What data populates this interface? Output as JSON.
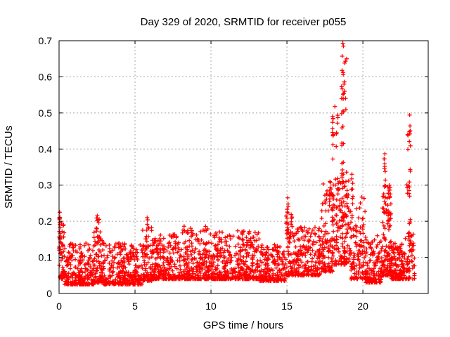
{
  "chart_data": {
    "type": "scatter",
    "title": "Day 329 of 2020, SRMTID for receiver p055",
    "xlabel": "GPS time / hours",
    "ylabel": "SRMTID / TECUs",
    "xlim": [
      0,
      24.3
    ],
    "ylim": [
      0,
      0.7
    ],
    "xticks": [
      0,
      5,
      10,
      15,
      20
    ],
    "xtick_labels": [
      "0",
      "5",
      "10",
      "15",
      "20"
    ],
    "yticks": [
      0,
      0.1,
      0.2,
      0.3,
      0.4,
      0.5,
      0.6,
      0.7
    ],
    "ytick_labels": [
      "0",
      "0.1",
      "0.2",
      "0.3",
      "0.4",
      "0.5",
      "0.6",
      "0.7"
    ],
    "grid": true,
    "grid_style": "dotted",
    "legend": "none",
    "marker": "plus",
    "marker_color": "#ff0000",
    "grid_color": "#a8a8a8",
    "border_color": "#000000",
    "text_color": "#000000",
    "background_color": "#ffffff",
    "series": [
      {
        "name": "SRMTID",
        "description": "Dense noisy baseline ~0.03-0.15 TECUs all day with vertical spike clusters; largest spike ~0.69 near 18.7 h, secondary spikes ~0.52 near 18.0 h, ~0.39 near 21.45 h, ~0.49 near 23.1 h, ~0.26 near 15.05 h, ~0.22 near 0 h, 2.55 h and 5.8 h",
        "baseline_segments": [
          {
            "x0": 0.0,
            "x1": 0.35,
            "count": 45,
            "y_min": 0.04,
            "y_max": 0.2,
            "skew": 2.0
          },
          {
            "x0": 0.35,
            "x1": 2.3,
            "count": 230,
            "y_min": 0.025,
            "y_max": 0.14,
            "skew": 2.2
          },
          {
            "x0": 2.3,
            "x1": 2.85,
            "count": 65,
            "y_min": 0.03,
            "y_max": 0.19,
            "skew": 2.4
          },
          {
            "x0": 2.85,
            "x1": 5.5,
            "count": 300,
            "y_min": 0.025,
            "y_max": 0.14,
            "skew": 2.2
          },
          {
            "x0": 5.5,
            "x1": 6.1,
            "count": 70,
            "y_min": 0.035,
            "y_max": 0.185,
            "skew": 2.4
          },
          {
            "x0": 6.1,
            "x1": 8.0,
            "count": 225,
            "y_min": 0.04,
            "y_max": 0.165,
            "skew": 2.3
          },
          {
            "x0": 8.0,
            "x1": 9.8,
            "count": 210,
            "y_min": 0.04,
            "y_max": 0.19,
            "skew": 2.4
          },
          {
            "x0": 9.8,
            "x1": 13.2,
            "count": 400,
            "y_min": 0.04,
            "y_max": 0.175,
            "skew": 2.4
          },
          {
            "x0": 13.2,
            "x1": 14.9,
            "count": 200,
            "y_min": 0.035,
            "y_max": 0.135,
            "skew": 2.1
          },
          {
            "x0": 14.9,
            "x1": 15.35,
            "count": 55,
            "y_min": 0.05,
            "y_max": 0.22,
            "skew": 2.2
          },
          {
            "x0": 15.35,
            "x1": 17.2,
            "count": 210,
            "y_min": 0.05,
            "y_max": 0.185,
            "skew": 2.1
          },
          {
            "x0": 17.2,
            "x1": 18.1,
            "count": 115,
            "y_min": 0.06,
            "y_max": 0.31,
            "skew": 2.1
          },
          {
            "x0": 18.1,
            "x1": 19.1,
            "count": 135,
            "y_min": 0.08,
            "y_max": 0.34,
            "skew": 1.7
          },
          {
            "x0": 19.1,
            "x1": 20.2,
            "count": 125,
            "y_min": 0.04,
            "y_max": 0.27,
            "skew": 2.2
          },
          {
            "x0": 20.2,
            "x1": 21.25,
            "count": 130,
            "y_min": 0.03,
            "y_max": 0.15,
            "skew": 2.2
          },
          {
            "x0": 21.25,
            "x1": 21.85,
            "count": 115,
            "y_min": 0.05,
            "y_max": 0.3,
            "skew": 1.8
          },
          {
            "x0": 21.85,
            "x1": 22.75,
            "count": 155,
            "y_min": 0.04,
            "y_max": 0.145,
            "skew": 2.2
          },
          {
            "x0": 22.75,
            "x1": 23.4,
            "count": 60,
            "y_min": 0.04,
            "y_max": 0.17,
            "skew": 1.9
          }
        ],
        "spike_strands": [
          {
            "x": 0.05,
            "jitter": 0.05,
            "count": 10,
            "y_min": 0.12,
            "y_max": 0.225,
            "skew": 1.0
          },
          {
            "x": 2.55,
            "jitter": 0.1,
            "count": 12,
            "y_min": 0.13,
            "y_max": 0.215,
            "skew": 1.0
          },
          {
            "x": 5.82,
            "jitter": 0.07,
            "count": 9,
            "y_min": 0.12,
            "y_max": 0.205,
            "skew": 1.0
          },
          {
            "x": 15.05,
            "jitter": 0.06,
            "count": 8,
            "y_min": 0.17,
            "y_max": 0.255,
            "skew": 1.0
          },
          {
            "x": 17.85,
            "jitter": 0.08,
            "count": 7,
            "y_min": 0.2,
            "y_max": 0.31,
            "skew": 1.0
          },
          {
            "x": 18.03,
            "jitter": 0.05,
            "count": 22,
            "y_min": 0.19,
            "y_max": 0.52,
            "skew": 1.1
          },
          {
            "x": 18.3,
            "jitter": 0.06,
            "count": 6,
            "y_min": 0.4,
            "y_max": 0.52,
            "skew": 1.0
          },
          {
            "x": 18.68,
            "jitter": 0.1,
            "count": 30,
            "y_min": 0.2,
            "y_max": 0.66,
            "skew": 1.2
          },
          {
            "x": 19.3,
            "jitter": 0.07,
            "count": 8,
            "y_min": 0.17,
            "y_max": 0.32,
            "skew": 1.0
          },
          {
            "x": 21.45,
            "jitter": 0.06,
            "count": 12,
            "y_min": 0.22,
            "y_max": 0.375,
            "skew": 1.1
          },
          {
            "x": 22.93,
            "jitter": 0.05,
            "count": 6,
            "y_min": 0.24,
            "y_max": 0.44,
            "skew": 1.0
          },
          {
            "x": 23.08,
            "jitter": 0.05,
            "count": 14,
            "y_min": 0.12,
            "y_max": 0.47,
            "skew": 1.0
          }
        ],
        "peak_points": [
          [
            18.68,
            0.693
          ],
          [
            18.72,
            0.685
          ],
          [
            18.93,
            0.65
          ],
          [
            18.85,
            0.643
          ],
          [
            18.8,
            0.638
          ],
          [
            18.7,
            0.612
          ],
          [
            18.71,
            0.606
          ],
          [
            18.78,
            0.586
          ],
          [
            18.76,
            0.58
          ],
          [
            18.8,
            0.56
          ],
          [
            18.74,
            0.554
          ],
          [
            18.86,
            0.54
          ],
          [
            18.16,
            0.518
          ],
          [
            18.88,
            0.51
          ],
          [
            18.6,
            0.498
          ],
          [
            23.08,
            0.494
          ],
          [
            23.1,
            0.464
          ],
          [
            23.07,
            0.448
          ],
          [
            23.09,
            0.442
          ],
          [
            23.06,
            0.421
          ],
          [
            22.95,
            0.44
          ],
          [
            21.45,
            0.387
          ],
          [
            21.44,
            0.352
          ],
          [
            21.47,
            0.338
          ],
          [
            15.05,
            0.265
          ],
          [
            15.08,
            0.248
          ],
          [
            0.04,
            0.225
          ],
          [
            0.06,
            0.211
          ],
          [
            2.52,
            0.215
          ],
          [
            2.56,
            0.205
          ],
          [
            5.8,
            0.21
          ],
          [
            19.28,
            0.33
          ],
          [
            19.33,
            0.305
          ],
          [
            17.83,
            0.31
          ],
          [
            0.3,
            0.19
          ],
          [
            20.95,
            0.16
          ]
        ]
      }
    ]
  }
}
